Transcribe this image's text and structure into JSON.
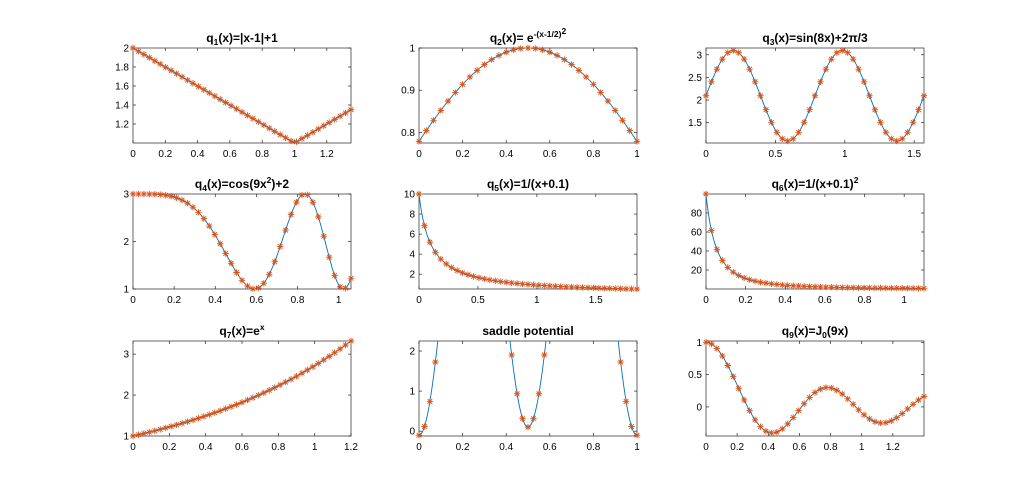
{
  "figure": {
    "colors": {
      "line": "#0072BD",
      "marker": "#D95319",
      "axis": "#262626"
    }
  },
  "chart_data": [
    {
      "type": "line",
      "func": "q1",
      "title": {
        "base": "q",
        "sub": "1",
        "rest": "(x)=|x-1|+1"
      },
      "xlim": [
        0,
        1.35
      ],
      "ylim": [
        1.0,
        2.0
      ],
      "xticks": [
        0,
        0.2,
        0.4,
        0.6,
        0.8,
        1,
        1.2
      ],
      "xtick_labels": [
        "0",
        "0.2",
        "0.4",
        "0.6",
        "0.8",
        "1",
        "1.2"
      ],
      "yticks": [
        1.2,
        1.4,
        1.6,
        1.8,
        2
      ],
      "ytick_labels": [
        "1.2",
        "1.4",
        "1.6",
        "1.8",
        "2"
      ],
      "markers": 41,
      "series": [
        {
          "x": [
            0,
            0.2,
            0.4,
            0.6,
            0.8,
            1.0,
            1.2,
            1.35
          ],
          "y": [
            2.0,
            1.8,
            1.6,
            1.4,
            1.2,
            1.0,
            1.2,
            1.35
          ]
        }
      ]
    },
    {
      "type": "line",
      "func": "q2",
      "title": {
        "base": "q",
        "sub": "2",
        "rest": "(x)= e",
        "sup": "-(x-1/2)",
        "sup2": "2"
      },
      "xlim": [
        0,
        1
      ],
      "ylim": [
        0.775,
        1.0
      ],
      "xticks": [
        0,
        0.2,
        0.4,
        0.6,
        0.8,
        1
      ],
      "xtick_labels": [
        "0",
        "0.2",
        "0.4",
        "0.6",
        "0.8",
        "1"
      ],
      "yticks": [
        0.8,
        0.9,
        1
      ],
      "ytick_labels": [
        "0.8",
        "0.9",
        "1"
      ],
      "markers": 31,
      "series": [
        {
          "x": [
            0,
            0.25,
            0.5,
            0.75,
            1.0
          ],
          "y": [
            0.779,
            0.939,
            1.0,
            0.939,
            0.779
          ]
        }
      ]
    },
    {
      "type": "line",
      "func": "q3",
      "title": {
        "base": "q",
        "sub": "3",
        "rest": "(x)=sin(8x)+2π/3"
      },
      "xlim": [
        0,
        1.5708
      ],
      "ylim": [
        1.05,
        3.15
      ],
      "xticks": [
        0,
        0.5,
        1,
        1.5
      ],
      "xtick_labels": [
        "0",
        "0.5",
        "1",
        "1.5"
      ],
      "yticks": [
        1.5,
        2,
        2.5,
        3
      ],
      "ytick_labels": [
        "1.5",
        "2",
        "2.5",
        "3"
      ],
      "markers": 41,
      "series": [
        {
          "x": [
            0,
            0.196,
            0.589,
            0.982,
            1.374,
            1.571
          ],
          "y": [
            2.094,
            3.094,
            1.094,
            3.094,
            1.094,
            2.094
          ]
        }
      ]
    },
    {
      "type": "line",
      "func": "q4",
      "title": {
        "base": "q",
        "sub": "4",
        "rest": "(x)=cos(9x",
        "sup": "2",
        "rest2": ")+2"
      },
      "xlim": [
        0,
        1.06
      ],
      "ylim": [
        1.0,
        3.0
      ],
      "xticks": [
        0,
        0.2,
        0.4,
        0.6,
        0.8,
        1
      ],
      "xtick_labels": [
        "0",
        "0.2",
        "0.4",
        "0.6",
        "0.8",
        "1"
      ],
      "yticks": [
        1,
        2,
        3
      ],
      "ytick_labels": [
        "1",
        "2",
        "3"
      ],
      "markers": 41,
      "series": [
        {
          "x": [
            0,
            0.2,
            0.4,
            0.591,
            0.836,
            1.023,
            1.06
          ],
          "y": [
            3.0,
            2.93,
            2.06,
            1.0,
            3.0,
            1.0,
            1.12
          ]
        }
      ]
    },
    {
      "type": "line",
      "func": "q5",
      "title": {
        "base": "q",
        "sub": "5",
        "rest": "(x)=1/(x+0.1)"
      },
      "xlim": [
        0,
        1.85
      ],
      "ylim": [
        0.52,
        10.0
      ],
      "xticks": [
        0,
        0.5,
        1,
        1.5
      ],
      "xtick_labels": [
        "0",
        "0.5",
        "1",
        "1.5"
      ],
      "yticks": [
        2,
        4,
        6,
        8,
        10
      ],
      "ytick_labels": [
        "2",
        "4",
        "6",
        "8",
        "10"
      ],
      "markers": 41,
      "series": [
        {
          "x": [
            0,
            0.1,
            0.25,
            0.5,
            1.0,
            1.5,
            1.85
          ],
          "y": [
            10.0,
            5.0,
            2.86,
            1.67,
            0.91,
            0.625,
            0.513
          ]
        }
      ]
    },
    {
      "type": "line",
      "func": "q6",
      "title": {
        "base": "q",
        "sub": "6",
        "rest": "(x)=1/(x+0.1)",
        "sup": "2"
      },
      "xlim": [
        0,
        1.1
      ],
      "ylim": [
        0,
        100
      ],
      "xticks": [
        0,
        0.2,
        0.4,
        0.6,
        0.8,
        1
      ],
      "xtick_labels": [
        "0",
        "0.2",
        "0.4",
        "0.6",
        "0.8",
        "1"
      ],
      "yticks": [
        20,
        40,
        60,
        80
      ],
      "ytick_labels": [
        "20",
        "40",
        "60",
        "80"
      ],
      "markers": 41,
      "series": [
        {
          "x": [
            0,
            0.05,
            0.1,
            0.2,
            0.4,
            0.8,
            1.1
          ],
          "y": [
            100,
            44.4,
            25,
            11.1,
            4.0,
            1.23,
            0.69
          ]
        }
      ]
    },
    {
      "type": "line",
      "func": "q7",
      "title": {
        "base": "q",
        "sub": "7",
        "rest": "(x)=e",
        "sup": "x"
      },
      "xlim": [
        0,
        1.2
      ],
      "ylim": [
        1.0,
        3.32
      ],
      "xticks": [
        0,
        0.2,
        0.4,
        0.6,
        0.8,
        1,
        1.2
      ],
      "xtick_labels": [
        "0",
        "0.2",
        "0.4",
        "0.6",
        "0.8",
        "1",
        "1.2"
      ],
      "yticks": [
        1,
        2,
        3
      ],
      "ytick_labels": [
        "1",
        "2",
        "3"
      ],
      "markers": 41,
      "series": [
        {
          "x": [
            0,
            0.2,
            0.4,
            0.6,
            0.8,
            1.0,
            1.2
          ],
          "y": [
            1.0,
            1.221,
            1.492,
            1.822,
            2.226,
            2.718,
            3.32
          ]
        }
      ]
    },
    {
      "type": "line",
      "func": "saddle",
      "title": {
        "rest": "saddle potential"
      },
      "xlim": [
        0,
        1
      ],
      "ylim": [
        -0.12,
        2.25
      ],
      "xticks": [
        0,
        0.2,
        0.4,
        0.6,
        0.8,
        1
      ],
      "xtick_labels": [
        "0",
        "0.2",
        "0.4",
        "0.6",
        "0.8",
        "1"
      ],
      "yticks": [
        0,
        1,
        2
      ],
      "ytick_labels": [
        "0",
        "1",
        "2"
      ],
      "markers": 41,
      "series": [
        {
          "x": [
            0,
            0.225,
            0.5,
            0.775,
            1.0
          ],
          "y": [
            -0.1,
            2.2,
            0.0,
            2.2,
            -0.1
          ]
        }
      ]
    },
    {
      "type": "line",
      "func": "q9",
      "title": {
        "base": "q",
        "sub": "9",
        "rest": "(x)=J",
        "sub2": "0",
        "rest2": "(9x)"
      },
      "xlim": [
        0,
        1.4
      ],
      "ylim": [
        -0.45,
        1.02
      ],
      "xticks": [
        0,
        0.2,
        0.4,
        0.6,
        0.8,
        1,
        1.2
      ],
      "xtick_labels": [
        "0",
        "0.2",
        "0.4",
        "0.6",
        "0.8",
        "1",
        "1.2"
      ],
      "yticks": [
        0,
        0.5,
        1
      ],
      "ytick_labels": [
        "0",
        "0.5",
        "1"
      ],
      "markers": 41,
      "series": [
        {
          "x": [
            0,
            0.267,
            0.426,
            0.78,
            1.134,
            1.4
          ],
          "y": [
            1.0,
            0.0,
            -0.403,
            0.3,
            -0.25,
            0.16
          ]
        }
      ]
    }
  ]
}
